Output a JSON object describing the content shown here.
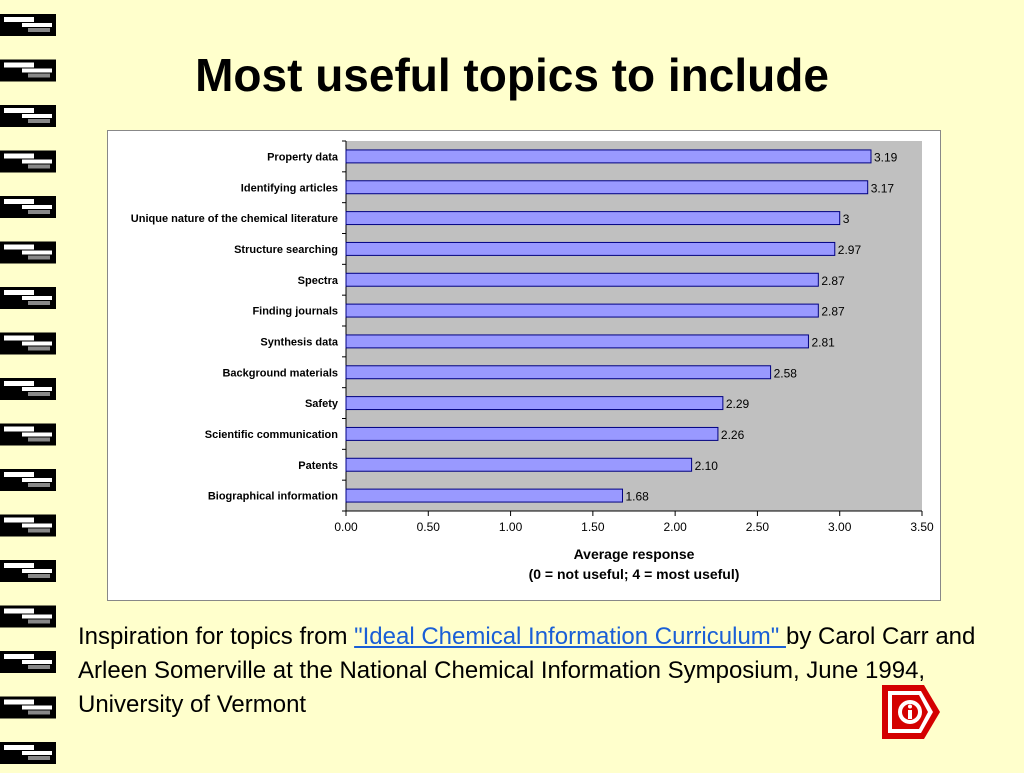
{
  "slide": {
    "title": "Most useful topics to include",
    "caption_prefix": "Inspiration for topics from ",
    "caption_link": "\"Ideal Chemical Information Curriculum\" ",
    "caption_suffix": "by Carol Carr and Arleen Somerville at the National Chemical Information Symposium, June 1994, University of Vermont",
    "logo_icon": "ci-logo",
    "colors": {
      "background": "#FFFFCC",
      "link": "#1a5fd6",
      "logo": "#d40000"
    }
  },
  "chart_data": {
    "type": "bar",
    "orientation": "horizontal",
    "title": "",
    "categories": [
      "Property data",
      "Identifying articles",
      "Unique nature of the chemical literature",
      "Structure searching",
      "Spectra",
      "Finding journals",
      "Synthesis data",
      "Background materials",
      "Safety",
      "Scientific communication",
      "Patents",
      "Biographical information"
    ],
    "values": [
      3.19,
      3.17,
      3.0,
      2.97,
      2.87,
      2.87,
      2.81,
      2.58,
      2.29,
      2.26,
      2.1,
      1.68
    ],
    "value_labels": [
      "3.19",
      "3.17",
      "3",
      "2.97",
      "2.87",
      "2.87",
      "2.81",
      "2.58",
      "2.29",
      "2.26",
      "2.10",
      "1.68"
    ],
    "xlabel": "Average response",
    "xlabel_sub": "(0 = not useful; 4 = most useful)",
    "xlim": [
      0,
      3.5
    ],
    "xticks": [
      "0.00",
      "0.50",
      "1.00",
      "1.50",
      "2.00",
      "2.50",
      "3.00",
      "3.50"
    ],
    "grid": false,
    "colors": {
      "bar": "#9999FF",
      "bar_edge": "#000080",
      "plot_bg": "#C0C0C0"
    }
  }
}
